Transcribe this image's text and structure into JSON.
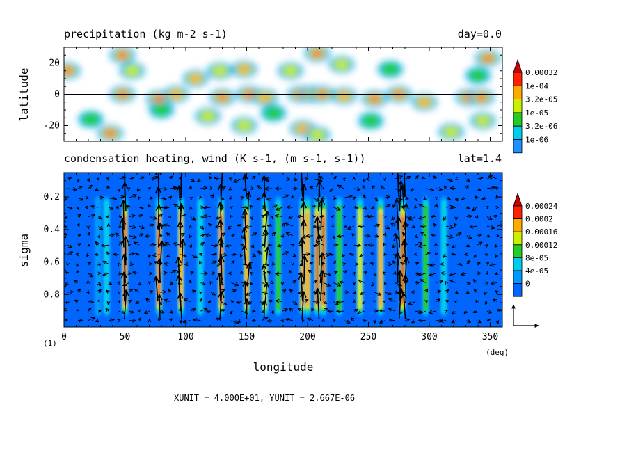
{
  "chart_data": [
    {
      "type": "heatmap",
      "title": "precipitation (kg m-2 s-1)",
      "title_right": "day=0.0",
      "ylabel": "latitude",
      "xlim": [
        0,
        360
      ],
      "ylim": [
        -30,
        30
      ],
      "yticks": [
        20,
        0,
        -20
      ],
      "levels": [
        "1e-06",
        "3.2e-06",
        "1e-05",
        "3.2e-05",
        "1e-04",
        "0.00032"
      ],
      "level_colors": [
        "#1e90ff",
        "#00ccee",
        "#22cc22",
        "#ccee00",
        "#ffaa00",
        "#ff2200",
        "#cc0000"
      ],
      "zero_line": 0,
      "features": [
        {
          "x": 48,
          "y": 0,
          "level": 5
        },
        {
          "x": 78,
          "y": -3,
          "level": 5
        },
        {
          "x": 92,
          "y": 0,
          "level": 4
        },
        {
          "x": 130,
          "y": -2,
          "level": 5
        },
        {
          "x": 152,
          "y": 0,
          "level": 5
        },
        {
          "x": 165,
          "y": -2,
          "level": 4
        },
        {
          "x": 194,
          "y": 0,
          "level": 5
        },
        {
          "x": 204,
          "y": 0,
          "level": 6
        },
        {
          "x": 212,
          "y": 0,
          "level": 6
        },
        {
          "x": 230,
          "y": -1,
          "level": 4
        },
        {
          "x": 255,
          "y": -3,
          "level": 5
        },
        {
          "x": 275,
          "y": 0,
          "level": 5
        },
        {
          "x": 296,
          "y": -5,
          "level": 4
        },
        {
          "x": 332,
          "y": -2,
          "level": 5
        },
        {
          "x": 343,
          "y": -2,
          "level": 5
        },
        {
          "x": 3,
          "y": 15,
          "level": 5
        },
        {
          "x": 48,
          "y": 25,
          "level": 5
        },
        {
          "x": 56,
          "y": 15,
          "level": 3
        },
        {
          "x": 108,
          "y": 10,
          "level": 4
        },
        {
          "x": 128,
          "y": 15,
          "level": 3
        },
        {
          "x": 148,
          "y": 16,
          "level": 4
        },
        {
          "x": 186,
          "y": 15,
          "level": 3
        },
        {
          "x": 208,
          "y": 26,
          "level": 5
        },
        {
          "x": 228,
          "y": 19,
          "level": 3
        },
        {
          "x": 268,
          "y": 16,
          "level": 2
        },
        {
          "x": 348,
          "y": 23,
          "level": 5
        },
        {
          "x": 340,
          "y": 12,
          "level": 2
        },
        {
          "x": 38,
          "y": -25,
          "level": 5
        },
        {
          "x": 118,
          "y": -14,
          "level": 3
        },
        {
          "x": 148,
          "y": -20,
          "level": 3
        },
        {
          "x": 196,
          "y": -22,
          "level": 4
        },
        {
          "x": 208,
          "y": -26,
          "level": 3
        },
        {
          "x": 252,
          "y": -17,
          "level": 2
        },
        {
          "x": 318,
          "y": -24,
          "level": 3
        },
        {
          "x": 344,
          "y": -17,
          "level": 3
        },
        {
          "x": 22,
          "y": -16,
          "level": 2
        },
        {
          "x": 80,
          "y": -10,
          "level": 2
        },
        {
          "x": 172,
          "y": -12,
          "level": 2
        }
      ]
    },
    {
      "type": "heatmap",
      "title": "condensation heating, wind (K s-1, (m s-1, s-1))",
      "title_right": "lat=1.4",
      "xlabel": "longitude",
      "ylabel": "sigma",
      "xlim": [
        0,
        360
      ],
      "ylim": [
        1.0,
        0.05
      ],
      "xticks": [
        0,
        50,
        100,
        150,
        200,
        250,
        300,
        350
      ],
      "yticks": [
        0.2,
        0.4,
        0.6,
        0.8
      ],
      "x_unit_label": "(deg)",
      "panel_label": "(1)",
      "levels": [
        "0",
        "4e-05",
        "8e-05",
        "0.00012",
        "0.00016",
        "0.0002",
        "0.00024"
      ],
      "level_colors": [
        "#0066ff",
        "#0099ff",
        "#00ccee",
        "#22cc22",
        "#ccee00",
        "#ffaa00",
        "#ff2200",
        "#cc0000"
      ],
      "heating_columns": [
        {
          "x": 28,
          "level": 1
        },
        {
          "x": 35,
          "level": 2
        },
        {
          "x": 50,
          "level": 6
        },
        {
          "x": 78,
          "level": 6
        },
        {
          "x": 96,
          "level": 5
        },
        {
          "x": 112,
          "level": 2
        },
        {
          "x": 129,
          "level": 6
        },
        {
          "x": 150,
          "level": 5
        },
        {
          "x": 165,
          "level": 4
        },
        {
          "x": 176,
          "level": 3
        },
        {
          "x": 196,
          "level": 5
        },
        {
          "x": 200,
          "level": 5
        },
        {
          "x": 208,
          "level": 7
        },
        {
          "x": 213,
          "level": 7
        },
        {
          "x": 226,
          "level": 3
        },
        {
          "x": 243,
          "level": 4
        },
        {
          "x": 260,
          "level": 5
        },
        {
          "x": 278,
          "level": 7
        },
        {
          "x": 297,
          "level": 3
        },
        {
          "x": 312,
          "level": 2
        }
      ],
      "strong_updrafts": [
        {
          "x": 50,
          "w": 1.9
        },
        {
          "x": 78,
          "w": 1.6
        },
        {
          "x": 96,
          "w": 1.7
        },
        {
          "x": 129,
          "w": 1.8
        },
        {
          "x": 150,
          "w": 1.3
        },
        {
          "x": 165,
          "w": 1.2
        },
        {
          "x": 196,
          "w": 1.8
        },
        {
          "x": 210,
          "w": 2.0
        },
        {
          "x": 275,
          "w": 2.0
        },
        {
          "x": 280,
          "w": 1.7
        }
      ],
      "vector_scale": {
        "xunit": "4.000E+01",
        "yunit": "2.667E-06"
      },
      "footer": "XUNIT = 4.000E+01, YUNIT = 2.667E-06"
    }
  ]
}
